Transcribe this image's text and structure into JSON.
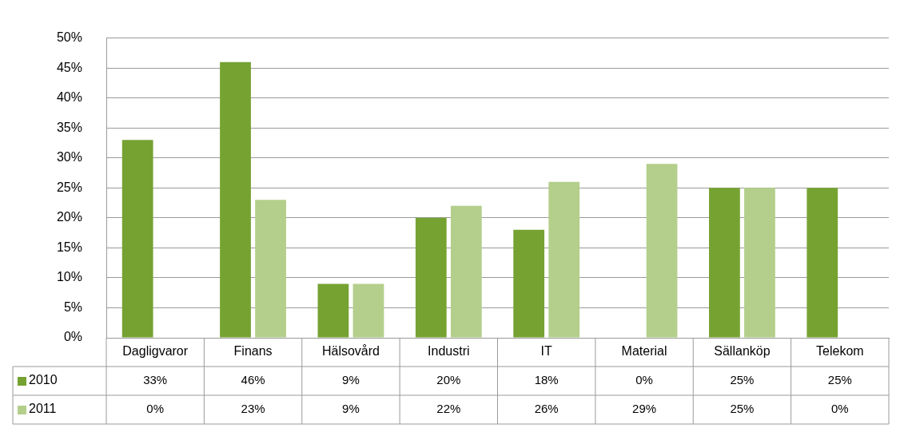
{
  "chart_data": {
    "type": "bar",
    "categories": [
      "Dagligvaror",
      "Finans",
      "Hälsovård",
      "Industri",
      "IT",
      "Material",
      "Sällanköp",
      "Telekom"
    ],
    "series": [
      {
        "name": "2010",
        "color": "#76a232",
        "values": [
          33,
          46,
          9,
          20,
          18,
          0,
          25,
          25
        ],
        "value_labels": [
          "33%",
          "46%",
          "9%",
          "20%",
          "18%",
          "0%",
          "25%",
          "25%"
        ]
      },
      {
        "name": "2011",
        "color": "#b3cf8b",
        "values": [
          0,
          23,
          9,
          22,
          26,
          29,
          25,
          0
        ],
        "value_labels": [
          "0%",
          "23%",
          "9%",
          "22%",
          "26%",
          "29%",
          "25%",
          "0%"
        ]
      }
    ],
    "ylim": [
      0,
      50
    ],
    "yticks": [
      {
        "value": 0,
        "label": "0%"
      },
      {
        "value": 5,
        "label": "5%"
      },
      {
        "value": 10,
        "label": "10%"
      },
      {
        "value": 15,
        "label": "15%"
      },
      {
        "value": 20,
        "label": "20%"
      },
      {
        "value": 25,
        "label": "25%"
      },
      {
        "value": 30,
        "label": "30%"
      },
      {
        "value": 35,
        "label": "35%"
      },
      {
        "value": 40,
        "label": "40%"
      },
      {
        "value": 45,
        "label": "45%"
      },
      {
        "value": 50,
        "label": "50%"
      }
    ],
    "grid": "y",
    "legend": "bottom left"
  }
}
